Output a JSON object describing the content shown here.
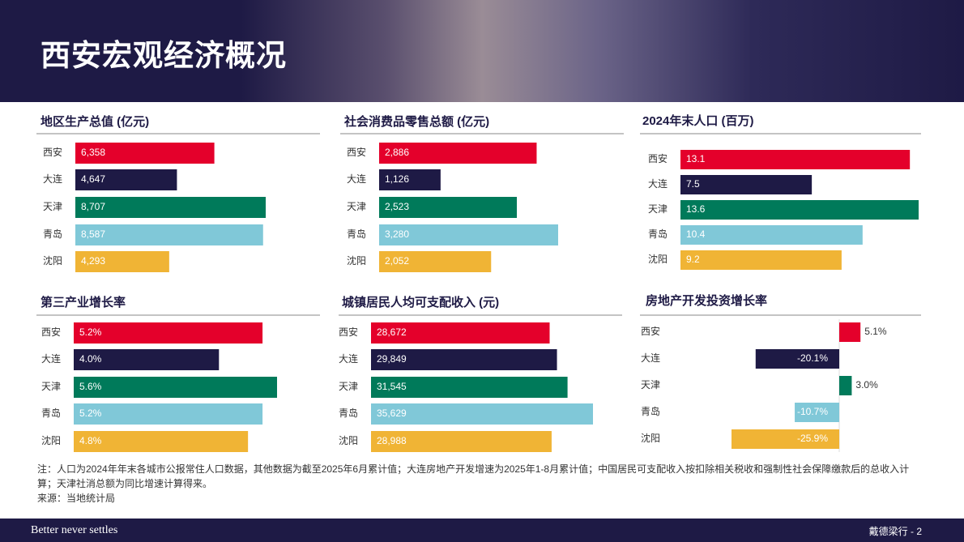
{
  "header": {
    "title": "西安宏观经济概况"
  },
  "chart_data": [
    {
      "type": "bar",
      "orientation": "horizontal",
      "title": "地区生产总值 (亿元)",
      "categories": [
        "西安",
        "大连",
        "天津",
        "青岛",
        "沈阳"
      ],
      "values": [
        6358,
        4647,
        8707,
        8587,
        4293
      ],
      "value_labels": [
        "6,358",
        "4,647",
        "8,707",
        "8,587",
        "4,293"
      ],
      "colors": [
        "#e4002b",
        "#1e1a45",
        "#007a5a",
        "#80c8d8",
        "#f0b435"
      ]
    },
    {
      "type": "bar",
      "orientation": "horizontal",
      "title": "社会消费品零售总额 (亿元)",
      "categories": [
        "西安",
        "大连",
        "天津",
        "青岛",
        "沈阳"
      ],
      "values": [
        2886,
        1126,
        2523,
        3280,
        2052
      ],
      "value_labels": [
        "2,886",
        "1,126",
        "2,523",
        "3,280",
        "2,052"
      ],
      "colors": [
        "#e4002b",
        "#1e1a45",
        "#007a5a",
        "#80c8d8",
        "#f0b435"
      ]
    },
    {
      "type": "bar",
      "orientation": "horizontal",
      "title": "2024年末人口 (百万)",
      "categories": [
        "西安",
        "大连",
        "天津",
        "青岛",
        "沈阳"
      ],
      "values": [
        13.1,
        7.5,
        13.6,
        10.4,
        9.2
      ],
      "colors": [
        "#e4002b",
        "#1e1a45",
        "#007a5a",
        "#80c8d8",
        "#f0b435"
      ]
    },
    {
      "type": "bar",
      "orientation": "horizontal",
      "title": "第三产业增长率",
      "categories": [
        "西安",
        "大连",
        "天津",
        "青岛",
        "沈阳"
      ],
      "values": [
        5.2,
        4.0,
        5.6,
        5.2,
        4.8
      ],
      "value_labels": [
        "5.2%",
        "4.0%",
        "5.6%",
        "5.2%",
        "4.8%"
      ],
      "colors": [
        "#e4002b",
        "#1e1a45",
        "#007a5a",
        "#80c8d8",
        "#f0b435"
      ]
    },
    {
      "type": "bar",
      "orientation": "horizontal",
      "title": "城镇居民人均可支配收入 (元)",
      "categories": [
        "西安",
        "大连",
        "天津",
        "青岛",
        "沈阳"
      ],
      "values": [
        28672,
        29849,
        31545,
        35629,
        28988
      ],
      "value_labels": [
        "28,672",
        "29,849",
        "31,545",
        "35,629",
        "28,988"
      ],
      "colors": [
        "#e4002b",
        "#1e1a45",
        "#007a5a",
        "#80c8d8",
        "#f0b435"
      ]
    },
    {
      "type": "bar",
      "orientation": "horizontal",
      "title": "房地产开发投资增长率",
      "categories": [
        "西安",
        "大连",
        "天津",
        "青岛",
        "沈阳"
      ],
      "values": [
        5.1,
        -20.1,
        3.0,
        -10.7,
        -25.9
      ],
      "value_labels": [
        "5.1%",
        "-20.1%",
        "3.0%",
        "-10.7%",
        "-25.9%"
      ],
      "colors": [
        "#e4002b",
        "#1e1a45",
        "#007a5a",
        "#80c8d8",
        "#f0b435"
      ]
    }
  ],
  "notes": [
    "注：人口为2024年年末各城市公报常住人口数据，其他数据为截至2025年6月累计值；大连房地产开发增速为2025年1-8月累计值；中国居民可支配收入按扣除相关税收和强制性社会保障缴款后的总收入计算；天津社消总额为同比增速计算得来。",
    "来源：当地统计局"
  ],
  "footer": {
    "tagline": "Better never settles",
    "page": "戴德梁行 - 2"
  }
}
